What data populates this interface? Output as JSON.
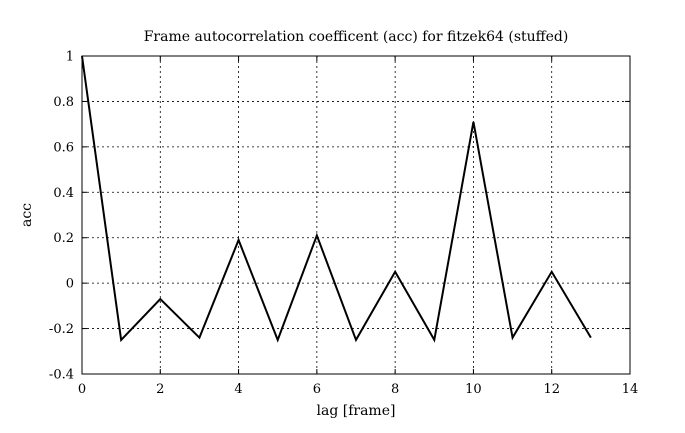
{
  "chart_data": {
    "type": "line",
    "title": "Frame autocorrelation coefficent (acc) for fitzek64 (stuffed)",
    "xlabel": "lag [frame]",
    "ylabel": "acc",
    "xlim": [
      0,
      14
    ],
    "ylim": [
      -0.4,
      1
    ],
    "xticks": [
      0,
      2,
      4,
      6,
      8,
      10,
      12,
      14
    ],
    "yticks": [
      -0.4,
      -0.2,
      0,
      0.2,
      0.4,
      0.6,
      0.8,
      1
    ],
    "xtick_labels": [
      "0",
      "2",
      "4",
      "6",
      "8",
      "10",
      "12",
      "14"
    ],
    "ytick_labels": [
      "-0.4",
      "-0.2",
      "0",
      "0.2",
      "0.4",
      "0.6",
      "0.8",
      "1"
    ],
    "grid": true,
    "series": [
      {
        "x": [
          0,
          1,
          2,
          3,
          4,
          5,
          6,
          7,
          8,
          9,
          10,
          11,
          12,
          13
        ],
        "values": [
          1.0,
          -0.25,
          -0.07,
          -0.24,
          0.19,
          -0.25,
          0.21,
          -0.25,
          0.05,
          -0.25,
          0.71,
          -0.24,
          0.05,
          -0.24
        ],
        "color": "#000000"
      }
    ]
  }
}
